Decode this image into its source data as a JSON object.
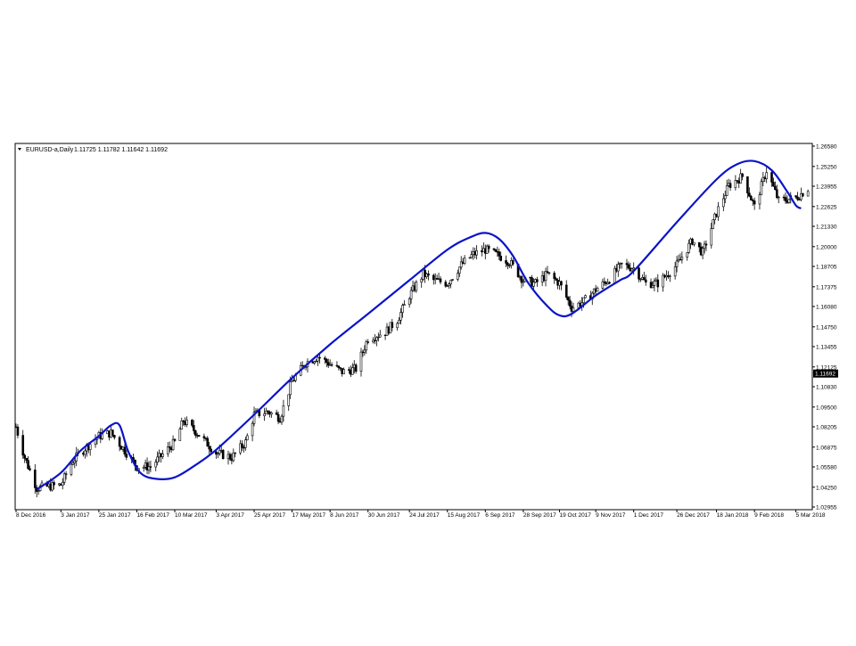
{
  "header": {
    "symbol_label": "EURUSD-a,Daily",
    "ohlc_values": "1.11725 1.11782 1.11642 1.11692",
    "menu_icon": "triangle-down-icon"
  },
  "chart_data": {
    "type": "candlestick",
    "title": "EURUSD-a,Daily",
    "grid": false,
    "legend": "none",
    "colors": {
      "candles": "#000000",
      "curve": "#0a14c8",
      "price_tag_bg": "#000000",
      "price_tag_text": "#ffffff",
      "background": "#ffffff"
    },
    "ylim": [
      1.02955,
      1.2658
    ],
    "y_ticks": [
      "1.26580",
      "1.25250",
      "1.23955",
      "1.22625",
      "1.21330",
      "1.20000",
      "1.18705",
      "1.17375",
      "1.16080",
      "1.14750",
      "1.13455",
      "1.12125",
      "1.10830",
      "1.09500",
      "1.08205",
      "1.06875",
      "1.05580",
      "1.04250",
      "1.02955"
    ],
    "current_price": "1.11692",
    "x_ticks": [
      "8 Dec 2016",
      "3 Jan 2017",
      "25 Jan 2017",
      "16 Feb 2017",
      "10 Mar 2017",
      "3 Apr 2017",
      "25 Apr 2017",
      "17 May 2017",
      "8 Jun 2017",
      "30 Jun 2017",
      "24 Jul 2017",
      "15 Aug 2017",
      "6 Sep 2017",
      "28 Sep 2017",
      "19 Oct 2017",
      "9 Nov 2017",
      "1 Dec 2017",
      "26 Dec 2017",
      "18 Jan 2018",
      "9 Feb 2018",
      "5 Mar 2018"
    ],
    "price_path": [
      [
        "8 Dec 2016",
        1.082
      ],
      [
        "13 Dec 2016",
        1.062
      ],
      [
        "20 Dec 2016",
        1.042
      ],
      [
        "3 Jan 2017",
        1.044
      ],
      [
        "10 Jan 2017",
        1.06
      ],
      [
        "17 Jan 2017",
        1.068
      ],
      [
        "25 Jan 2017",
        1.076
      ],
      [
        "1 Feb 2017",
        1.078
      ],
      [
        "8 Feb 2017",
        1.068
      ],
      [
        "16 Feb 2017",
        1.056
      ],
      [
        "24 Feb 2017",
        1.056
      ],
      [
        "3 Mar 2017",
        1.064
      ],
      [
        "10 Mar 2017",
        1.072
      ],
      [
        "15 Mar 2017",
        1.086
      ],
      [
        "23 Mar 2017",
        1.078
      ],
      [
        "3 Apr 2017",
        1.065
      ],
      [
        "12 Apr 2017",
        1.062
      ],
      [
        "20 Apr 2017",
        1.072
      ],
      [
        "25 Apr 2017",
        1.09
      ],
      [
        "3 May 2017",
        1.092
      ],
      [
        "10 May 2017",
        1.088
      ],
      [
        "17 May 2017",
        1.112
      ],
      [
        "25 May 2017",
        1.124
      ],
      [
        "1 Jun 2017",
        1.128
      ],
      [
        "8 Jun 2017",
        1.123
      ],
      [
        "15 Jun 2017",
        1.118
      ],
      [
        "23 Jun 2017",
        1.12
      ],
      [
        "30 Jun 2017",
        1.14
      ],
      [
        "10 Jul 2017",
        1.144
      ],
      [
        "17 Jul 2017",
        1.152
      ],
      [
        "24 Jul 2017",
        1.168
      ],
      [
        "1 Aug 2017",
        1.182
      ],
      [
        "7 Aug 2017",
        1.178
      ],
      [
        "15 Aug 2017",
        1.176
      ],
      [
        "23 Aug 2017",
        1.188
      ],
      [
        "30 Aug 2017",
        1.195
      ],
      [
        "6 Sep 2017",
        1.198
      ],
      [
        "14 Sep 2017",
        1.194
      ],
      [
        "20 Sep 2017",
        1.19
      ],
      [
        "28 Sep 2017",
        1.178
      ],
      [
        "5 Oct 2017",
        1.176
      ],
      [
        "12 Oct 2017",
        1.182
      ],
      [
        "19 Oct 2017",
        1.176
      ],
      [
        "26 Oct 2017",
        1.16
      ],
      [
        "2 Nov 2017",
        1.164
      ],
      [
        "9 Nov 2017",
        1.172
      ],
      [
        "16 Nov 2017",
        1.178
      ],
      [
        "24 Nov 2017",
        1.188
      ],
      [
        "1 Dec 2017",
        1.186
      ],
      [
        "8 Dec 2017",
        1.176
      ],
      [
        "15 Dec 2017",
        1.176
      ],
      [
        "26 Dec 2017",
        1.188
      ],
      [
        "4 Jan 2018",
        1.204
      ],
      [
        "10 Jan 2018",
        1.196
      ],
      [
        "18 Jan 2018",
        1.222
      ],
      [
        "25 Jan 2018",
        1.24
      ],
      [
        "2 Feb 2018",
        1.246
      ],
      [
        "9 Feb 2018",
        1.226
      ],
      [
        "16 Feb 2018",
        1.25
      ],
      [
        "23 Feb 2018",
        1.23
      ],
      [
        "5 Mar 2018",
        1.232
      ],
      [
        "12 Mar 2018",
        1.238
      ]
    ],
    "curve_path": [
      [
        "20 Dec 2016",
        1.041
      ],
      [
        "3 Jan 2017",
        1.052
      ],
      [
        "14 Jan 2017",
        1.066
      ],
      [
        "25 Jan 2017",
        1.076
      ],
      [
        "1 Feb 2017",
        1.083
      ],
      [
        "6 Feb 2017",
        1.083
      ],
      [
        "11 Feb 2017",
        1.066
      ],
      [
        "18 Feb 2017",
        1.052
      ],
      [
        "27 Feb 2017",
        1.048
      ],
      [
        "10 Mar 2017",
        1.049
      ],
      [
        "22 Mar 2017",
        1.057
      ],
      [
        "3 Apr 2017",
        1.067
      ],
      [
        "25 Apr 2017",
        1.09
      ],
      [
        "17 May 2017",
        1.114
      ],
      [
        "8 Jun 2017",
        1.136
      ],
      [
        "30 Jun 2017",
        1.156
      ],
      [
        "24 Jul 2017",
        1.178
      ],
      [
        "15 Aug 2017",
        1.198
      ],
      [
        "28 Aug 2017",
        1.206
      ],
      [
        "6 Sep 2017",
        1.209
      ],
      [
        "14 Sep 2017",
        1.205
      ],
      [
        "22 Sep 2017",
        1.194
      ],
      [
        "1 Oct 2017",
        1.176
      ],
      [
        "12 Oct 2017",
        1.161
      ],
      [
        "19 Oct 2017",
        1.155
      ],
      [
        "26 Oct 2017",
        1.156
      ],
      [
        "9 Nov 2017",
        1.168
      ],
      [
        "23 Nov 2017",
        1.178
      ],
      [
        "1 Dec 2017",
        1.184
      ],
      [
        "26 Dec 2017",
        1.216
      ],
      [
        "18 Jan 2018",
        1.244
      ],
      [
        "30 Jan 2018",
        1.254
      ],
      [
        "9 Feb 2018",
        1.256
      ],
      [
        "19 Feb 2018",
        1.25
      ],
      [
        "28 Feb 2018",
        1.236
      ],
      [
        "5 Mar 2018",
        1.227
      ],
      [
        "8 Mar 2018",
        1.225
      ]
    ]
  }
}
